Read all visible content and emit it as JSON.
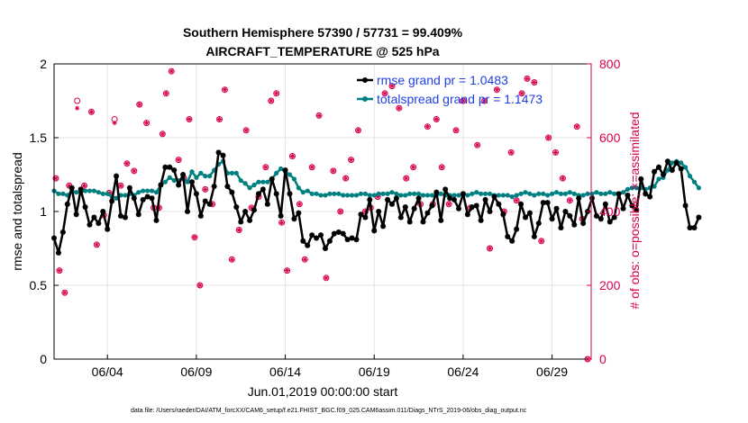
{
  "title_line1": "Southern Hemisphere 57390 / 57731 = 99.409%",
  "title_line2": "AIRCRAFT_TEMPERATURE @ 525 hPa",
  "footer": "data file: /Users/raeder/DAI/ATM_forcXX/CAM6_setup/f.e21.FHIST_BGC.f09_025.CAM6assim.011/Diags_NTrS_2019-06/obs_diag_output.nc",
  "colors": {
    "rmse": "#000000",
    "spread": "#008080",
    "obs": "#d6004f",
    "legend_text": "#1f3fe0"
  },
  "chart_data": {
    "type": "line",
    "title": "Southern Hemisphere 57390 / 57731 = 99.409% — AIRCRAFT_TEMPERATURE @ 525 hPa",
    "xlabel": "Jun.01,2019 00:00:00 start",
    "ylabel": "rmse and totalspread",
    "ylabel_right": "# of obs: o=possible; ×=assimilated",
    "xlim": [
      1,
      31.2
    ],
    "ylim": [
      0,
      2
    ],
    "ylim_right": [
      0,
      800
    ],
    "grid": true,
    "xtick_values": [
      4,
      9,
      14,
      19,
      24,
      29
    ],
    "xtick_labels": [
      "06/04",
      "06/09",
      "06/14",
      "06/19",
      "06/24",
      "06/29"
    ],
    "ytick_values": [
      0,
      0.5,
      1,
      1.5,
      2
    ],
    "ytick_labels": [
      "0",
      "0.5",
      "1",
      "1.5",
      "2"
    ],
    "ytick_right_values": [
      0,
      200,
      400,
      600,
      800
    ],
    "ytick_right_labels": [
      "0",
      "200",
      "400",
      "600",
      "800"
    ],
    "legend": [
      "rmse grand pr = 1.0483",
      "totalspread grand pr = 1.1473"
    ],
    "legend_position": "top-right",
    "series": [
      {
        "name": "rmse",
        "x_start": 1,
        "x_step": 0.25,
        "values": [
          0.82,
          0.72,
          0.86,
          1.05,
          1.16,
          0.98,
          1.15,
          1.03,
          0.91,
          0.96,
          0.92,
          1.0,
          0.88,
          1.07,
          1.24,
          0.97,
          0.96,
          1.16,
          1.09,
          0.98,
          1.08,
          1.1,
          1.09,
          0.94,
          1.18,
          1.3,
          1.3,
          1.28,
          1.18,
          1.25,
          1.0,
          1.2,
          1.12,
          0.97,
          1.07,
          1.05,
          1.17,
          1.4,
          1.38,
          1.17,
          1.13,
          1.03,
          0.93,
          1.0,
          0.94,
          1.01,
          1.12,
          1.15,
          1.05,
          1.22,
          1.12,
          0.97,
          1.28,
          1.12,
          0.95,
          0.99,
          0.8,
          0.77,
          0.84,
          0.82,
          0.84,
          0.75,
          0.8,
          0.85,
          0.86,
          0.85,
          0.81,
          0.82,
          0.81,
          0.98,
          0.96,
          1.08,
          0.87,
          1.0,
          0.9,
          1.08,
          1.05,
          1.09,
          0.96,
          1.03,
          0.93,
          1.02,
          1.09,
          0.93,
          0.99,
          1.04,
          1.13,
          0.94,
          1.15,
          1.09,
          1.08,
          1.02,
          1.12,
          0.98,
          1.03,
          1.04,
          0.94,
          1.08,
          1.0,
          1.1,
          1.05,
          0.98,
          0.83,
          0.8,
          0.88,
          1.05,
          0.96,
          0.99,
          0.83,
          0.92,
          1.06,
          1.06,
          0.95,
          1.02,
          0.89,
          1.0,
          0.97,
          0.91,
          1.09,
          0.92,
          1.0,
          1.09,
          0.97,
          0.95,
          1.05,
          0.93,
          0.96,
          1.12,
          1.02,
          1.11,
          1.04,
          1.01,
          1.22,
          1.12,
          1.1,
          1.27,
          1.3,
          1.25,
          1.34,
          1.28,
          1.33,
          1.29,
          1.04,
          0.89,
          0.89,
          0.96
        ],
        "style": "black line with asterisk markers"
      },
      {
        "name": "totalspread",
        "x_start": 1,
        "x_step": 0.25,
        "values": [
          1.14,
          1.12,
          1.12,
          1.11,
          1.14,
          1.13,
          1.13,
          1.14,
          1.14,
          1.14,
          1.13,
          1.12,
          1.12,
          1.1,
          1.09,
          1.11,
          1.11,
          1.12,
          1.11,
          1.13,
          1.14,
          1.14,
          1.14,
          1.13,
          1.18,
          1.2,
          1.23,
          1.21,
          1.21,
          1.23,
          1.2,
          1.27,
          1.23,
          1.26,
          1.24,
          1.24,
          1.28,
          1.32,
          1.34,
          1.26,
          1.26,
          1.26,
          1.21,
          1.19,
          1.16,
          1.18,
          1.2,
          1.2,
          1.2,
          1.22,
          1.26,
          1.29,
          1.27,
          1.25,
          1.22,
          1.16,
          1.13,
          1.14,
          1.12,
          1.12,
          1.11,
          1.11,
          1.12,
          1.12,
          1.12,
          1.11,
          1.11,
          1.11,
          1.11,
          1.12,
          1.12,
          1.11,
          1.11,
          1.12,
          1.12,
          1.12,
          1.13,
          1.12,
          1.11,
          1.11,
          1.12,
          1.12,
          1.12,
          1.11,
          1.11,
          1.11,
          1.11,
          1.12,
          1.11,
          1.11,
          1.11,
          1.11,
          1.12,
          1.11,
          1.12,
          1.13,
          1.12,
          1.12,
          1.12,
          1.11,
          1.11,
          1.11,
          1.11,
          1.1,
          1.11,
          1.12,
          1.13,
          1.12,
          1.11,
          1.12,
          1.12,
          1.11,
          1.12,
          1.13,
          1.12,
          1.12,
          1.13,
          1.12,
          1.11,
          1.11,
          1.12,
          1.12,
          1.13,
          1.12,
          1.12,
          1.13,
          1.12,
          1.12,
          1.13,
          1.15,
          1.16,
          1.16,
          1.16,
          1.15,
          1.16,
          1.17,
          1.22,
          1.23,
          1.28,
          1.33,
          1.34,
          1.33,
          1.3,
          1.24,
          1.2,
          1.16
        ],
        "style": "teal line with filled circle markers"
      },
      {
        "name": "obs possible",
        "axis": "right",
        "x": [
          1.1,
          1.3,
          1.6,
          1.85,
          2.3,
          2.7,
          3.1,
          3.4,
          3.8,
          4.1,
          4.4,
          4.75,
          5.1,
          5.5,
          5.8,
          6.2,
          6.6,
          6.9,
          7.1,
          7.3,
          7.6,
          8.0,
          8.3,
          8.6,
          8.9,
          9.2,
          9.5,
          9.9,
          10.3,
          10.6,
          11.0,
          11.4,
          11.8,
          12.1,
          12.5,
          12.9,
          13.2,
          13.5,
          13.8,
          14.1,
          14.4,
          14.8,
          15.1,
          15.5,
          15.9,
          16.3,
          16.7,
          17.1,
          17.4,
          17.7,
          18.1,
          18.5,
          18.8,
          19.2,
          19.6,
          20.0,
          20.4,
          20.8,
          21.2,
          21.6,
          22.0,
          22.3,
          22.5,
          22.8,
          23.2,
          23.6,
          24.0,
          24.4,
          24.8,
          25.2,
          25.5,
          25.9,
          26.3,
          26.7,
          27.0,
          27.3,
          27.6,
          28.0,
          28.4,
          28.8,
          29.2,
          29.6,
          30.0,
          30.4,
          30.7,
          31.0
        ],
        "values": [
          490,
          240,
          180,
          470,
          700,
          470,
          670,
          310,
          390,
          450,
          650,
          470,
          530,
          510,
          690,
          640,
          410,
          410,
          610,
          720,
          780,
          540,
          490,
          650,
          330,
          200,
          460,
          420,
          650,
          730,
          270,
          350,
          620,
          410,
          440,
          520,
          700,
          720,
          370,
          240,
          550,
          420,
          270,
          520,
          660,
          220,
          510,
          400,
          490,
          540,
          620,
          400,
          410,
          440,
          720,
          740,
          680,
          490,
          520,
          420,
          630,
          420,
          650,
          520,
          420,
          620,
          700,
          410,
          580,
          700,
          300,
          730,
          400,
          560,
          430,
          720,
          760,
          750,
          320,
          600,
          560,
          490,
          430,
          630,
          380,
          0
        ],
        "style": "magenta open circles"
      },
      {
        "name": "obs assimilated",
        "axis": "right",
        "x": [
          1.1,
          1.3,
          1.6,
          1.85,
          2.3,
          2.7,
          3.1,
          3.4,
          3.8,
          4.1,
          4.4,
          4.75,
          5.1,
          5.5,
          5.8,
          6.2,
          6.6,
          6.9,
          7.1,
          7.3,
          7.6,
          8.0,
          8.3,
          8.6,
          8.9,
          9.2,
          9.5,
          9.9,
          10.3,
          10.6,
          11.0,
          11.4,
          11.8,
          12.1,
          12.5,
          12.9,
          13.2,
          13.5,
          13.8,
          14.1,
          14.4,
          14.8,
          15.1,
          15.5,
          15.9,
          16.3,
          16.7,
          17.1,
          17.4,
          17.7,
          18.1,
          18.5,
          18.8,
          19.2,
          19.6,
          20.0,
          20.4,
          20.8,
          21.2,
          21.6,
          22.0,
          22.3,
          22.5,
          22.8,
          23.2,
          23.6,
          24.0,
          24.4,
          24.8,
          25.2,
          25.5,
          25.9,
          26.3,
          26.7,
          27.0,
          27.3,
          27.6,
          28.0,
          28.4,
          28.8,
          29.2,
          29.6,
          30.0,
          30.4,
          30.7,
          31.0
        ],
        "values": [
          490,
          240,
          180,
          470,
          680,
          470,
          670,
          310,
          390,
          450,
          640,
          470,
          530,
          510,
          690,
          640,
          410,
          410,
          610,
          720,
          780,
          540,
          490,
          650,
          330,
          200,
          460,
          420,
          650,
          730,
          270,
          350,
          620,
          410,
          440,
          520,
          700,
          720,
          370,
          240,
          550,
          420,
          270,
          520,
          660,
          220,
          510,
          400,
          490,
          540,
          620,
          400,
          410,
          440,
          720,
          740,
          680,
          490,
          520,
          420,
          630,
          420,
          650,
          520,
          420,
          620,
          700,
          410,
          580,
          700,
          300,
          730,
          400,
          560,
          430,
          720,
          760,
          750,
          320,
          600,
          560,
          490,
          430,
          630,
          380,
          0
        ],
        "style": "magenta asterisks"
      }
    ]
  }
}
